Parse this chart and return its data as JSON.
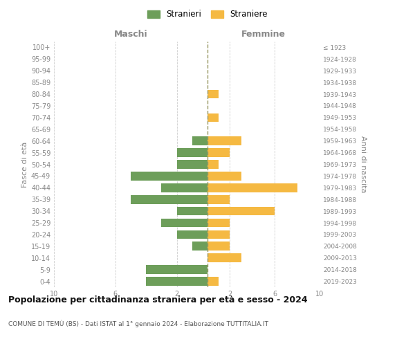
{
  "age_groups": [
    "0-4",
    "5-9",
    "10-14",
    "15-19",
    "20-24",
    "25-29",
    "30-34",
    "35-39",
    "40-44",
    "45-49",
    "50-54",
    "55-59",
    "60-64",
    "65-69",
    "70-74",
    "75-79",
    "80-84",
    "85-89",
    "90-94",
    "95-99",
    "100+"
  ],
  "birth_years": [
    "2019-2023",
    "2014-2018",
    "2009-2013",
    "2004-2008",
    "1999-2003",
    "1994-1998",
    "1989-1993",
    "1984-1988",
    "1979-1983",
    "1974-1978",
    "1969-1973",
    "1964-1968",
    "1959-1963",
    "1954-1958",
    "1949-1953",
    "1944-1948",
    "1939-1943",
    "1934-1938",
    "1929-1933",
    "1924-1928",
    "≤ 1923"
  ],
  "maschi": [
    4,
    4,
    0,
    1,
    2,
    3,
    2,
    5,
    3,
    5,
    2,
    2,
    1,
    0,
    0,
    0,
    0,
    0,
    0,
    0,
    0
  ],
  "femmine": [
    1,
    0,
    3,
    2,
    2,
    2,
    6,
    2,
    8,
    3,
    1,
    2,
    3,
    0,
    1,
    0,
    1,
    0,
    0,
    0,
    0
  ],
  "color_maschi": "#6d9e5a",
  "color_femmine": "#f5b942",
  "title": "Popolazione per cittadinanza straniera per età e sesso - 2024",
  "subtitle": "COMUNE DI TEMÙ (BS) - Dati ISTAT al 1° gennaio 2024 - Elaborazione TUTTITALIA.IT",
  "legend_maschi": "Stranieri",
  "legend_femmine": "Straniere",
  "label_maschi": "Maschi",
  "label_femmine": "Femmine",
  "ylabel_left": "Fasce di età",
  "ylabel_right": "Anni di nascita",
  "xlim": 10,
  "bg_color": "#ffffff",
  "grid_color": "#cccccc",
  "label_color": "#888888",
  "center_line_color": "#999966",
  "title_color": "#111111",
  "subtitle_color": "#555555"
}
